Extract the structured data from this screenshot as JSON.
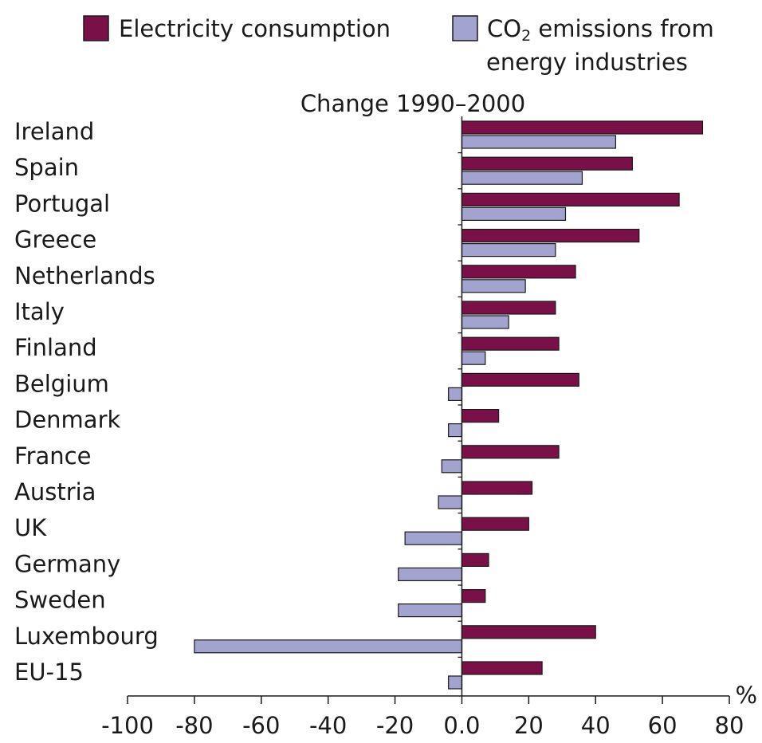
{
  "chart_data": {
    "type": "bar",
    "orientation": "horizontal",
    "title": "Change 1990–2000",
    "xlabel": "",
    "ylabel": "",
    "x_unit": "%",
    "xlim": [
      -100,
      80
    ],
    "x_ticks": [
      -100,
      -80,
      -60,
      -40,
      -20,
      0,
      20,
      40,
      60,
      80
    ],
    "x_tick_labels": [
      "-100",
      "-80",
      "-60",
      "-40",
      "-20",
      "0.0",
      "20",
      "40",
      "60",
      "80"
    ],
    "grid": false,
    "legend_position": "top-right",
    "categories": [
      "Ireland",
      "Spain",
      "Portugal",
      "Greece",
      "Netherlands",
      "Italy",
      "Finland",
      "Belgium",
      "Denmark",
      "France",
      "Austria",
      "UK",
      "Germany",
      "Sweden",
      "Luxembourg",
      "EU-15"
    ],
    "series": [
      {
        "name": "Electricity consumption",
        "color": "#7a1048",
        "values": [
          72,
          51,
          65,
          53,
          34,
          28,
          29,
          35,
          11,
          29,
          21,
          20,
          8,
          7,
          40,
          24
        ]
      },
      {
        "name_prefix": "CO",
        "name_subscript": "2",
        "name_suffix": " emissions from",
        "name_line2": "energy industries",
        "color": "#a3a3cf",
        "values": [
          46,
          36,
          31,
          28,
          19,
          14,
          7,
          -4,
          -4,
          -6,
          -7,
          -17,
          -19,
          -19,
          -80,
          -4
        ]
      }
    ]
  }
}
